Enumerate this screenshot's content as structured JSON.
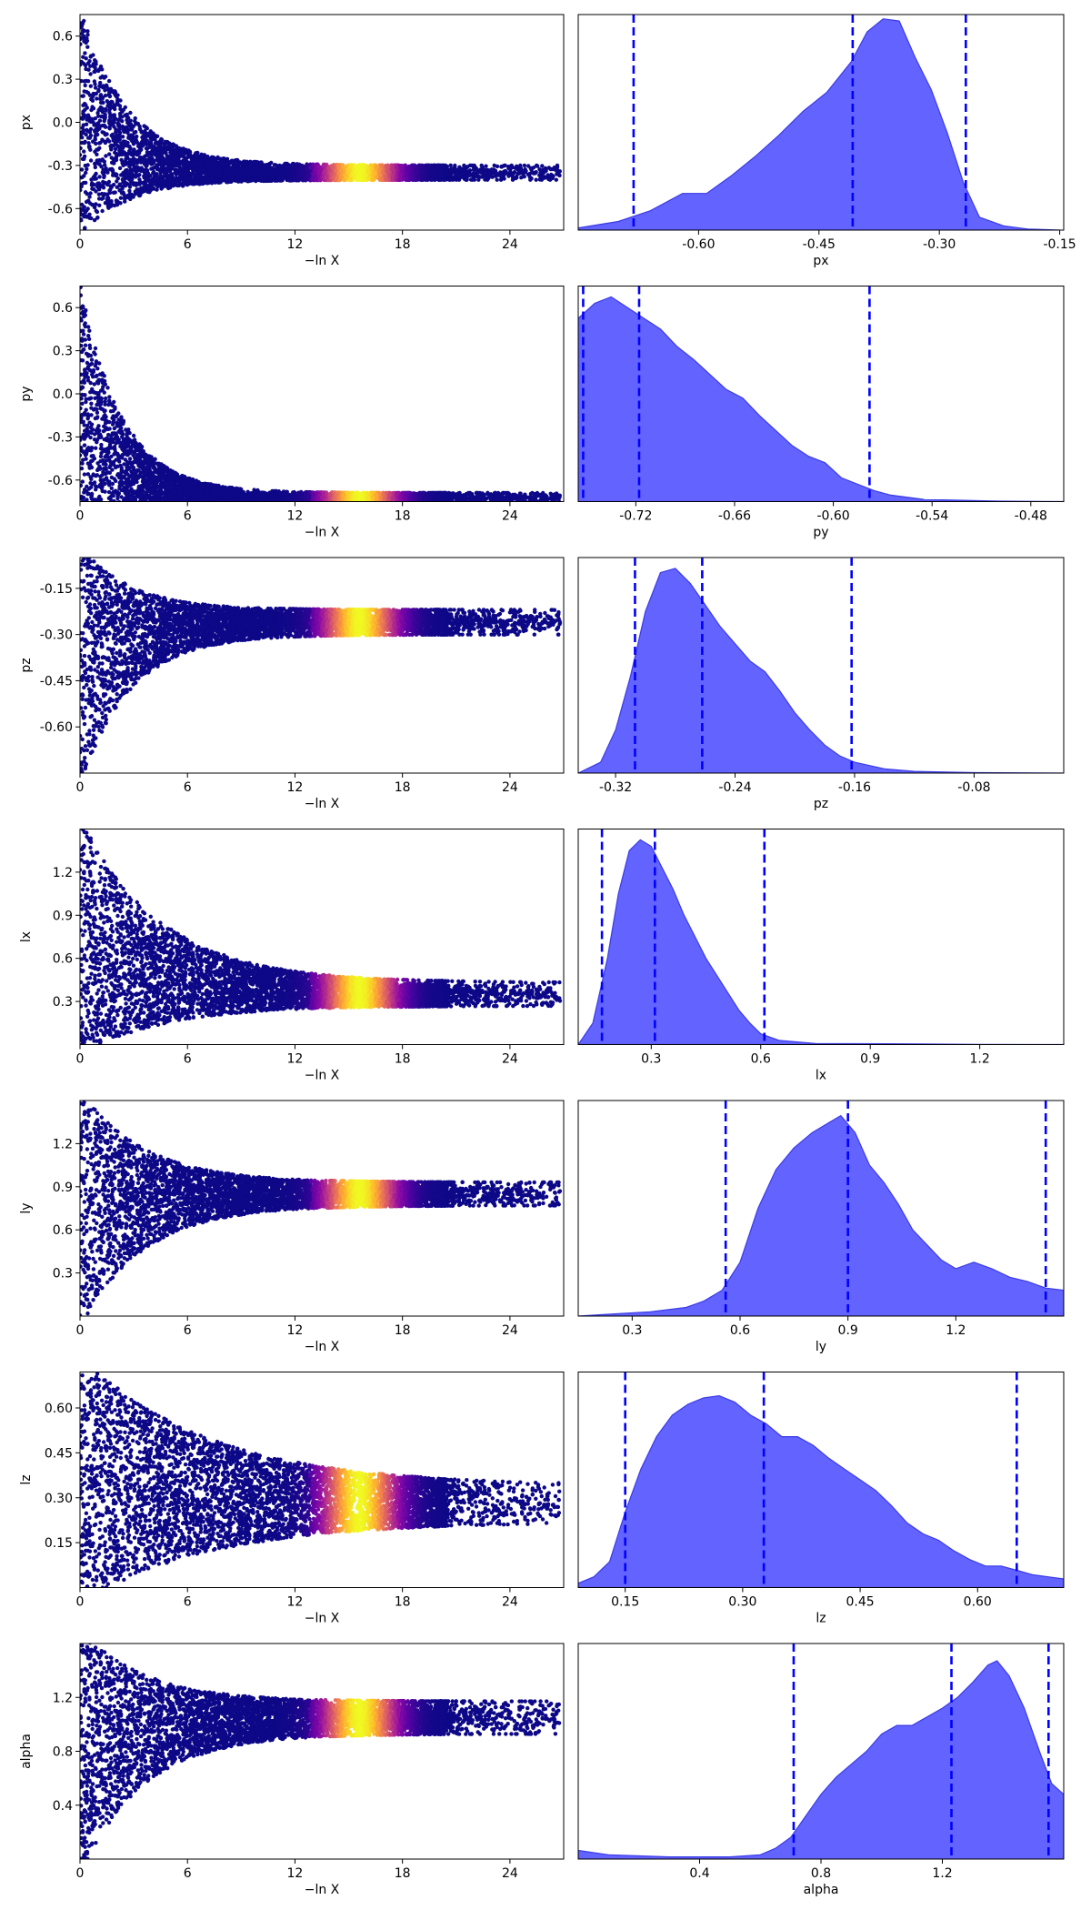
{
  "chart_data": [
    {
      "type": "scatter",
      "param": "px",
      "ylabel": "px",
      "xlabel": "−ln X",
      "xlim": [
        0,
        27
      ],
      "xticks": [
        0,
        6,
        12,
        18,
        24
      ],
      "ylim": [
        -0.75,
        0.75
      ],
      "yticks": [
        -0.6,
        -0.3,
        0.0,
        0.3,
        0.6
      ],
      "shape": {
        "y_center": -0.35,
        "hi_early": 0.75,
        "lo_early": -0.75,
        "w_late": 0.05,
        "decay": 2.6
      }
    },
    {
      "type": "area",
      "param": "px",
      "xlabel": "px",
      "xlim": [
        -0.75,
        -0.145
      ],
      "xticks": [
        -0.6,
        -0.45,
        -0.3,
        -0.15
      ],
      "ymax": 1.0,
      "density": [
        [
          -0.75,
          0.01
        ],
        [
          -0.7,
          0.04
        ],
        [
          -0.66,
          0.09
        ],
        [
          -0.62,
          0.17
        ],
        [
          -0.59,
          0.17
        ],
        [
          -0.56,
          0.25
        ],
        [
          -0.53,
          0.34
        ],
        [
          -0.5,
          0.44
        ],
        [
          -0.47,
          0.55
        ],
        [
          -0.44,
          0.64
        ],
        [
          -0.41,
          0.78
        ],
        [
          -0.39,
          0.92
        ],
        [
          -0.37,
          0.98
        ],
        [
          -0.35,
          0.97
        ],
        [
          -0.33,
          0.8
        ],
        [
          -0.31,
          0.65
        ],
        [
          -0.29,
          0.45
        ],
        [
          -0.27,
          0.22
        ],
        [
          -0.25,
          0.06
        ],
        [
          -0.22,
          0.02
        ],
        [
          -0.19,
          0.005
        ],
        [
          -0.15,
          0.0
        ]
      ],
      "quantiles": [
        -0.681,
        -0.408,
        -0.267
      ]
    },
    {
      "type": "scatter",
      "param": "py",
      "ylabel": "py",
      "xlabel": "−ln X",
      "xlim": [
        0,
        27
      ],
      "xticks": [
        0,
        6,
        12,
        18,
        24
      ],
      "ylim": [
        -0.75,
        0.75
      ],
      "yticks": [
        -0.6,
        -0.3,
        0.0,
        0.3,
        0.6
      ],
      "shape": {
        "y_center": -0.72,
        "hi_early": 0.75,
        "lo_early": -0.75,
        "w_late": 0.03,
        "decay": 2.3
      }
    },
    {
      "type": "area",
      "param": "py",
      "xlabel": "py",
      "xlim": [
        -0.755,
        -0.46
      ],
      "xticks": [
        -0.72,
        -0.66,
        -0.6,
        -0.54,
        -0.48
      ],
      "ymax": 1.0,
      "density": [
        [
          -0.755,
          0.85
        ],
        [
          -0.745,
          0.92
        ],
        [
          -0.735,
          0.95
        ],
        [
          -0.725,
          0.9
        ],
        [
          -0.715,
          0.85
        ],
        [
          -0.705,
          0.8
        ],
        [
          -0.695,
          0.72
        ],
        [
          -0.685,
          0.66
        ],
        [
          -0.675,
          0.59
        ],
        [
          -0.665,
          0.52
        ],
        [
          -0.655,
          0.48
        ],
        [
          -0.645,
          0.4
        ],
        [
          -0.635,
          0.33
        ],
        [
          -0.625,
          0.26
        ],
        [
          -0.615,
          0.21
        ],
        [
          -0.605,
          0.18
        ],
        [
          -0.595,
          0.11
        ],
        [
          -0.585,
          0.08
        ],
        [
          -0.575,
          0.05
        ],
        [
          -0.565,
          0.03
        ],
        [
          -0.545,
          0.01
        ],
        [
          -0.5,
          0.002
        ],
        [
          -0.46,
          0.0
        ]
      ],
      "quantiles": [
        -0.752,
        -0.718,
        -0.578
      ]
    },
    {
      "type": "scatter",
      "param": "pz",
      "ylabel": "pz",
      "xlabel": "−ln X",
      "xlim": [
        0,
        27
      ],
      "xticks": [
        0,
        6,
        12,
        18,
        24
      ],
      "ylim": [
        -0.75,
        -0.05
      ],
      "yticks": [
        -0.6,
        -0.45,
        -0.3,
        -0.15
      ],
      "shape": {
        "y_center": -0.26,
        "hi_early": -0.05,
        "lo_early": -0.75,
        "w_late": 0.04,
        "decay": 2.8
      }
    },
    {
      "type": "area",
      "param": "pz",
      "xlabel": "pz",
      "xlim": [
        -0.345,
        -0.02
      ],
      "xticks": [
        -0.32,
        -0.24,
        -0.16,
        -0.08
      ],
      "ymax": 1.0,
      "density": [
        [
          -0.345,
          0.0
        ],
        [
          -0.33,
          0.05
        ],
        [
          -0.32,
          0.2
        ],
        [
          -0.31,
          0.45
        ],
        [
          -0.3,
          0.75
        ],
        [
          -0.29,
          0.93
        ],
        [
          -0.28,
          0.95
        ],
        [
          -0.27,
          0.88
        ],
        [
          -0.26,
          0.78
        ],
        [
          -0.25,
          0.68
        ],
        [
          -0.24,
          0.6
        ],
        [
          -0.23,
          0.52
        ],
        [
          -0.22,
          0.47
        ],
        [
          -0.21,
          0.38
        ],
        [
          -0.2,
          0.28
        ],
        [
          -0.19,
          0.2
        ],
        [
          -0.18,
          0.13
        ],
        [
          -0.17,
          0.08
        ],
        [
          -0.16,
          0.05
        ],
        [
          -0.14,
          0.02
        ],
        [
          -0.12,
          0.008
        ],
        [
          -0.08,
          0.002
        ],
        [
          -0.02,
          0.0
        ]
      ],
      "quantiles": [
        -0.307,
        -0.262,
        -0.162
      ]
    },
    {
      "type": "scatter",
      "param": "lx",
      "ylabel": "lx",
      "xlabel": "−ln X",
      "xlim": [
        0,
        27
      ],
      "xticks": [
        0,
        6,
        12,
        18,
        24
      ],
      "ylim": [
        0.0,
        1.5
      ],
      "yticks": [
        0.3,
        0.6,
        0.9,
        1.2
      ],
      "shape": {
        "y_center": 0.35,
        "hi_early": 1.5,
        "lo_early": 0.0,
        "w_late": 0.08,
        "decay": 4.5
      }
    },
    {
      "type": "area",
      "param": "lx",
      "xlabel": "lx",
      "xlim": [
        0.1,
        1.43
      ],
      "xticks": [
        0.3,
        0.6,
        0.9,
        1.2
      ],
      "ymax": 1.0,
      "density": [
        [
          0.1,
          0.0
        ],
        [
          0.14,
          0.1
        ],
        [
          0.18,
          0.4
        ],
        [
          0.21,
          0.7
        ],
        [
          0.24,
          0.9
        ],
        [
          0.27,
          0.95
        ],
        [
          0.3,
          0.92
        ],
        [
          0.33,
          0.82
        ],
        [
          0.36,
          0.72
        ],
        [
          0.39,
          0.6
        ],
        [
          0.42,
          0.5
        ],
        [
          0.45,
          0.4
        ],
        [
          0.48,
          0.32
        ],
        [
          0.51,
          0.24
        ],
        [
          0.54,
          0.16
        ],
        [
          0.57,
          0.1
        ],
        [
          0.6,
          0.05
        ],
        [
          0.65,
          0.02
        ],
        [
          0.75,
          0.005
        ],
        [
          0.95,
          0.004
        ],
        [
          1.2,
          0.001
        ],
        [
          1.43,
          0.0
        ]
      ],
      "quantiles": [
        0.165,
        0.31,
        0.61
      ]
    },
    {
      "type": "scatter",
      "param": "ly",
      "ylabel": "ly",
      "xlabel": "−ln X",
      "xlim": [
        0,
        27
      ],
      "xticks": [
        0,
        6,
        12,
        18,
        24
      ],
      "ylim": [
        0.0,
        1.5
      ],
      "yticks": [
        0.3,
        0.6,
        0.9,
        1.2
      ],
      "shape": {
        "y_center": 0.85,
        "hi_early": 1.5,
        "lo_early": 0.0,
        "w_late": 0.08,
        "decay": 3.5
      }
    },
    {
      "type": "area",
      "param": "ly",
      "xlabel": "ly",
      "xlim": [
        0.15,
        1.5
      ],
      "xticks": [
        0.3,
        0.6,
        0.9,
        1.2
      ],
      "ymax": 1.0,
      "density": [
        [
          0.15,
          0.0
        ],
        [
          0.25,
          0.01
        ],
        [
          0.35,
          0.02
        ],
        [
          0.45,
          0.04
        ],
        [
          0.5,
          0.07
        ],
        [
          0.55,
          0.12
        ],
        [
          0.6,
          0.25
        ],
        [
          0.65,
          0.5
        ],
        [
          0.7,
          0.68
        ],
        [
          0.75,
          0.78
        ],
        [
          0.8,
          0.85
        ],
        [
          0.85,
          0.9
        ],
        [
          0.88,
          0.93
        ],
        [
          0.92,
          0.85
        ],
        [
          0.96,
          0.7
        ],
        [
          1.0,
          0.62
        ],
        [
          1.04,
          0.52
        ],
        [
          1.08,
          0.4
        ],
        [
          1.12,
          0.33
        ],
        [
          1.16,
          0.26
        ],
        [
          1.2,
          0.22
        ],
        [
          1.25,
          0.25
        ],
        [
          1.3,
          0.22
        ],
        [
          1.35,
          0.18
        ],
        [
          1.4,
          0.16
        ],
        [
          1.45,
          0.13
        ],
        [
          1.5,
          0.12
        ]
      ],
      "quantiles": [
        0.56,
        0.9,
        1.45
      ]
    },
    {
      "type": "scatter",
      "param": "lz",
      "ylabel": "lz",
      "xlabel": "−ln X",
      "xlim": [
        0,
        27
      ],
      "xticks": [
        0,
        6,
        12,
        18,
        24
      ],
      "ylim": [
        0.0,
        0.72
      ],
      "yticks": [
        0.15,
        0.3,
        0.45,
        0.6
      ],
      "shape": {
        "y_center": 0.28,
        "hi_early": 0.72,
        "lo_early": 0.0,
        "w_late": 0.06,
        "decay": 7.0
      }
    },
    {
      "type": "area",
      "param": "lz",
      "xlabel": "lz",
      "xlim": [
        0.09,
        0.71
      ],
      "xticks": [
        0.15,
        0.3,
        0.45,
        0.6
      ],
      "ymax": 1.0,
      "density": [
        [
          0.09,
          0.02
        ],
        [
          0.11,
          0.05
        ],
        [
          0.13,
          0.12
        ],
        [
          0.15,
          0.35
        ],
        [
          0.17,
          0.55
        ],
        [
          0.19,
          0.7
        ],
        [
          0.21,
          0.8
        ],
        [
          0.23,
          0.85
        ],
        [
          0.25,
          0.88
        ],
        [
          0.27,
          0.89
        ],
        [
          0.29,
          0.86
        ],
        [
          0.31,
          0.8
        ],
        [
          0.33,
          0.76
        ],
        [
          0.35,
          0.7
        ],
        [
          0.37,
          0.7
        ],
        [
          0.39,
          0.66
        ],
        [
          0.41,
          0.6
        ],
        [
          0.43,
          0.55
        ],
        [
          0.45,
          0.5
        ],
        [
          0.47,
          0.45
        ],
        [
          0.49,
          0.38
        ],
        [
          0.51,
          0.3
        ],
        [
          0.53,
          0.25
        ],
        [
          0.55,
          0.22
        ],
        [
          0.57,
          0.17
        ],
        [
          0.59,
          0.13
        ],
        [
          0.61,
          0.1
        ],
        [
          0.63,
          0.1
        ],
        [
          0.65,
          0.08
        ],
        [
          0.67,
          0.06
        ],
        [
          0.69,
          0.05
        ],
        [
          0.71,
          0.04
        ]
      ],
      "quantiles": [
        0.15,
        0.327,
        0.65
      ]
    },
    {
      "type": "scatter",
      "param": "alpha",
      "ylabel": "alpha",
      "xlabel": "−ln X",
      "xlim": [
        0,
        27
      ],
      "xticks": [
        0,
        6,
        12,
        18,
        24
      ],
      "ylim": [
        0.0,
        1.6
      ],
      "yticks": [
        0.4,
        0.8,
        1.2
      ],
      "shape": {
        "y_center": 1.05,
        "hi_early": 1.6,
        "lo_early": 0.0,
        "w_late": 0.12,
        "decay": 3.5
      }
    },
    {
      "type": "area",
      "param": "alpha",
      "xlabel": "alpha",
      "xlim": [
        0.0,
        1.6
      ],
      "xticks": [
        0.4,
        0.8,
        1.2
      ],
      "ymax": 1.0,
      "density": [
        [
          0.0,
          0.04
        ],
        [
          0.1,
          0.02
        ],
        [
          0.3,
          0.01
        ],
        [
          0.5,
          0.01
        ],
        [
          0.6,
          0.02
        ],
        [
          0.65,
          0.05
        ],
        [
          0.7,
          0.1
        ],
        [
          0.75,
          0.2
        ],
        [
          0.8,
          0.3
        ],
        [
          0.85,
          0.38
        ],
        [
          0.9,
          0.44
        ],
        [
          0.95,
          0.5
        ],
        [
          1.0,
          0.58
        ],
        [
          1.05,
          0.62
        ],
        [
          1.1,
          0.62
        ],
        [
          1.15,
          0.66
        ],
        [
          1.2,
          0.7
        ],
        [
          1.25,
          0.75
        ],
        [
          1.3,
          0.82
        ],
        [
          1.35,
          0.9
        ],
        [
          1.38,
          0.92
        ],
        [
          1.42,
          0.85
        ],
        [
          1.47,
          0.7
        ],
        [
          1.52,
          0.5
        ],
        [
          1.56,
          0.35
        ],
        [
          1.6,
          0.3
        ]
      ],
      "quantiles": [
        0.71,
        1.23,
        1.55
      ]
    }
  ],
  "colors": {
    "fill": "#6363ff",
    "edge": "#3b3be6",
    "quantile_line": "#0000ff",
    "points_default": "#0d0887",
    "colormap": "plasma"
  }
}
